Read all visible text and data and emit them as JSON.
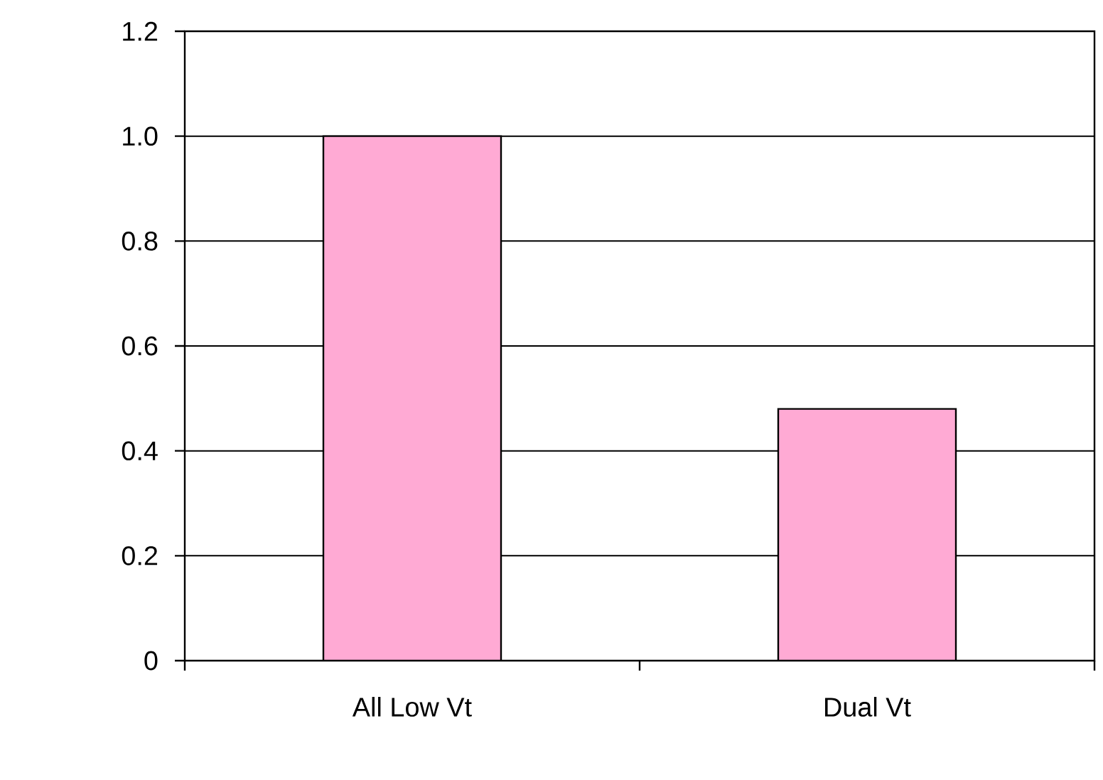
{
  "chart_data": {
    "type": "bar",
    "categories": [
      "All Low Vt",
      "Dual Vt"
    ],
    "values": [
      1.0,
      0.48
    ],
    "color": "#ffaad4",
    "ylim": [
      0,
      1.2
    ],
    "yticks": [
      0,
      {
        "value": 0.2,
        "label": "0.2"
      },
      {
        "value": 0.4,
        "label": "0.4"
      },
      {
        "value": 0.6,
        "label": "0.6"
      },
      {
        "value": 0.8,
        "label": "0.8"
      },
      {
        "value": 1.0,
        "label": "1.0"
      },
      {
        "value": 1.2,
        "label": "1.2"
      }
    ],
    "grid": "y"
  }
}
